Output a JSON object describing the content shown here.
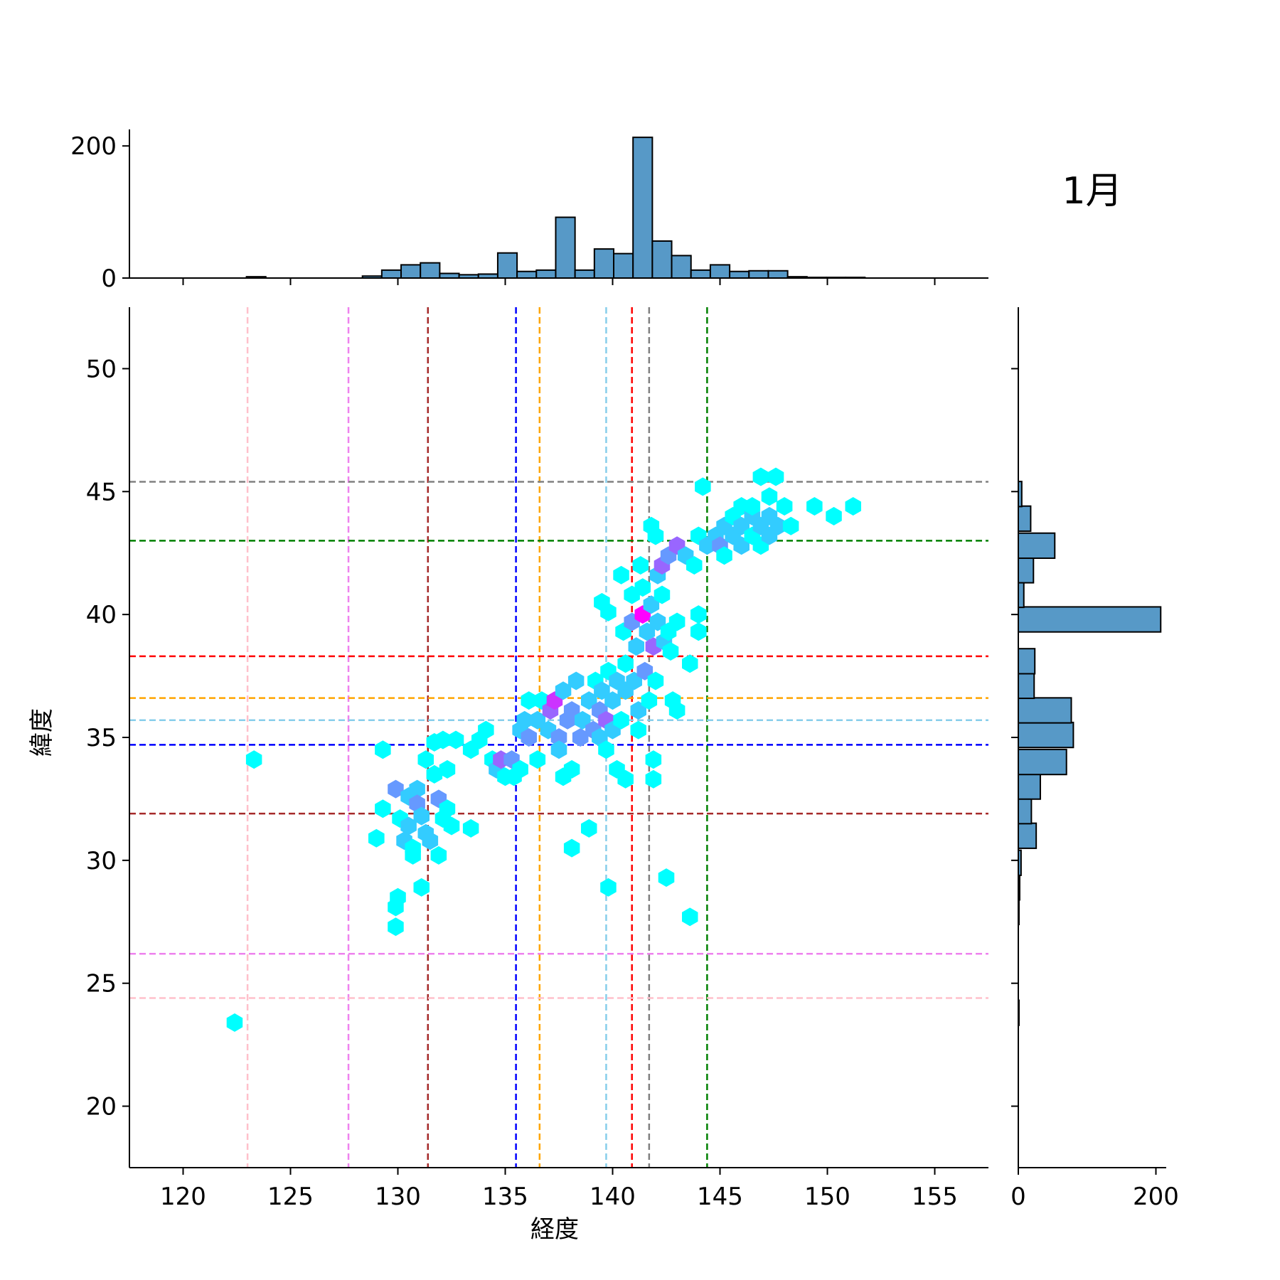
{
  "chart_data": {
    "type": "hexbin-joint",
    "title": "1月",
    "xlabel": "経度",
    "ylabel": "緯度",
    "xlim": [
      117.5,
      157.5
    ],
    "ylim": [
      17.5,
      52.5
    ],
    "xticks": [
      120,
      125,
      130,
      135,
      140,
      145,
      150,
      155
    ],
    "yticks": [
      20,
      25,
      30,
      35,
      40,
      45,
      50
    ],
    "colors": {
      "hist_fill": "#5799c7",
      "hist_edge": "#000000",
      "hex_low": "#00ffff",
      "hex_high": "#ff00ff"
    },
    "vertical_lines": [
      {
        "x": 123.0,
        "color": "#ffc0cb"
      },
      {
        "x": 127.7,
        "color": "#ee82ee"
      },
      {
        "x": 131.4,
        "color": "#a52a2a"
      },
      {
        "x": 135.5,
        "color": "#0000ff"
      },
      {
        "x": 136.6,
        "color": "#ffa500"
      },
      {
        "x": 139.7,
        "color": "#87ceeb"
      },
      {
        "x": 140.9,
        "color": "#ff0000"
      },
      {
        "x": 141.7,
        "color": "#808080"
      },
      {
        "x": 144.4,
        "color": "#008000"
      }
    ],
    "horizontal_lines": [
      {
        "y": 45.4,
        "color": "#808080"
      },
      {
        "y": 43.0,
        "color": "#008000"
      },
      {
        "y": 38.3,
        "color": "#ff0000"
      },
      {
        "y": 36.6,
        "color": "#ffa500"
      },
      {
        "y": 35.7,
        "color": "#87ceeb"
      },
      {
        "y": 34.7,
        "color": "#0000ff"
      },
      {
        "y": 31.9,
        "color": "#a52a2a"
      },
      {
        "y": 26.2,
        "color": "#ee82ee"
      },
      {
        "y": 24.4,
        "color": "#ffc0cb"
      }
    ],
    "hexbins": [
      [
        122.4,
        23.4,
        1
      ],
      [
        123.3,
        34.1,
        1
      ],
      [
        129.3,
        34.5,
        1
      ],
      [
        129.3,
        32.1,
        1
      ],
      [
        129.0,
        30.9,
        1
      ],
      [
        129.9,
        32.9,
        3
      ],
      [
        130.1,
        31.7,
        1
      ],
      [
        130.5,
        31.4,
        2
      ],
      [
        130.3,
        30.8,
        2
      ],
      [
        130.7,
        30.5,
        1
      ],
      [
        130.7,
        30.2,
        1
      ],
      [
        130.5,
        32.6,
        2
      ],
      [
        130.9,
        32.9,
        2
      ],
      [
        130.9,
        32.3,
        3
      ],
      [
        131.1,
        31.8,
        2
      ],
      [
        131.3,
        31.1,
        2
      ],
      [
        131.3,
        34.1,
        1
      ],
      [
        131.7,
        33.5,
        1
      ],
      [
        131.7,
        34.8,
        1
      ],
      [
        131.5,
        30.8,
        2
      ],
      [
        131.9,
        32.5,
        3
      ],
      [
        132.3,
        32.1,
        1
      ],
      [
        132.1,
        31.7,
        1
      ],
      [
        132.1,
        34.9,
        1
      ],
      [
        132.3,
        33.7,
        1
      ],
      [
        132.5,
        31.4,
        1
      ],
      [
        132.7,
        34.9,
        1
      ],
      [
        131.9,
        30.2,
        1
      ],
      [
        131.1,
        28.9,
        1
      ],
      [
        130.0,
        28.5,
        1
      ],
      [
        129.9,
        28.1,
        1
      ],
      [
        129.9,
        27.3,
        1
      ],
      [
        133.4,
        31.3,
        1
      ],
      [
        133.4,
        34.5,
        1
      ],
      [
        133.8,
        34.9,
        1
      ],
      [
        134.1,
        35.3,
        1
      ],
      [
        134.4,
        34.1,
        1
      ],
      [
        134.6,
        33.7,
        2
      ],
      [
        134.8,
        34.1,
        4
      ],
      [
        135.0,
        33.4,
        1
      ],
      [
        135.3,
        34.1,
        3
      ],
      [
        135.4,
        33.4,
        1
      ],
      [
        135.7,
        33.7,
        1
      ],
      [
        135.7,
        35.3,
        2
      ],
      [
        135.9,
        35.7,
        2
      ],
      [
        136.1,
        35.0,
        3
      ],
      [
        136.1,
        36.5,
        1
      ],
      [
        136.5,
        35.7,
        2
      ],
      [
        136.5,
        34.1,
        1
      ],
      [
        136.7,
        36.5,
        1
      ],
      [
        137.0,
        35.3,
        2
      ],
      [
        137.1,
        36.1,
        4
      ],
      [
        137.3,
        36.5,
        5
      ],
      [
        137.5,
        35.0,
        3
      ],
      [
        137.5,
        34.5,
        2
      ],
      [
        137.7,
        33.4,
        1
      ],
      [
        137.7,
        36.9,
        2
      ],
      [
        137.9,
        35.7,
        3
      ],
      [
        138.1,
        36.1,
        3
      ],
      [
        138.3,
        37.3,
        2
      ],
      [
        138.1,
        33.7,
        1
      ],
      [
        138.5,
        35.0,
        3
      ],
      [
        138.6,
        35.7,
        2
      ],
      [
        138.9,
        36.5,
        2
      ],
      [
        138.9,
        31.3,
        1
      ],
      [
        138.1,
        30.5,
        1
      ],
      [
        139.1,
        35.3,
        3
      ],
      [
        139.2,
        37.3,
        1
      ],
      [
        139.4,
        36.1,
        3
      ],
      [
        139.4,
        35.0,
        2
      ],
      [
        139.5,
        36.9,
        2
      ],
      [
        139.7,
        35.7,
        4
      ],
      [
        139.7,
        34.5,
        1
      ],
      [
        139.8,
        37.7,
        1
      ],
      [
        140.0,
        35.3,
        2
      ],
      [
        140.0,
        36.5,
        2
      ],
      [
        140.2,
        37.3,
        2
      ],
      [
        139.8,
        28.9,
        1
      ],
      [
        139.8,
        40.1,
        1
      ],
      [
        139.5,
        40.5,
        1
      ],
      [
        140.2,
        33.7,
        1
      ],
      [
        140.4,
        35.7,
        1
      ],
      [
        140.6,
        36.9,
        2
      ],
      [
        140.6,
        33.3,
        1
      ],
      [
        140.4,
        41.6,
        1
      ],
      [
        140.5,
        39.3,
        1
      ],
      [
        140.6,
        38.0,
        1
      ],
      [
        140.9,
        40.8,
        1
      ],
      [
        140.9,
        39.7,
        3
      ],
      [
        141.0,
        37.3,
        2
      ],
      [
        141.1,
        38.7,
        2
      ],
      [
        141.3,
        42.0,
        1
      ],
      [
        141.2,
        35.3,
        1
      ],
      [
        141.2,
        36.1,
        2
      ],
      [
        141.4,
        40.0,
        6
      ],
      [
        141.6,
        39.3,
        2
      ],
      [
        141.5,
        37.7,
        3
      ],
      [
        141.4,
        41.1,
        1
      ],
      [
        141.7,
        36.5,
        1
      ],
      [
        141.8,
        43.6,
        1
      ],
      [
        141.8,
        40.4,
        2
      ],
      [
        141.9,
        38.7,
        4
      ],
      [
        141.9,
        34.1,
        1
      ],
      [
        141.9,
        33.3,
        1
      ],
      [
        142.0,
        37.3,
        1
      ],
      [
        142.0,
        43.2,
        1
      ],
      [
        142.1,
        41.6,
        2
      ],
      [
        142.1,
        39.7,
        2
      ],
      [
        142.3,
        42.0,
        4
      ],
      [
        142.3,
        40.8,
        1
      ],
      [
        142.4,
        38.9,
        2
      ],
      [
        142.5,
        29.3,
        1
      ],
      [
        142.6,
        42.4,
        3
      ],
      [
        142.6,
        39.3,
        1
      ],
      [
        142.7,
        38.5,
        1
      ],
      [
        142.8,
        36.5,
        1
      ],
      [
        143.0,
        42.8,
        4
      ],
      [
        143.0,
        39.7,
        1
      ],
      [
        143.0,
        36.1,
        1
      ],
      [
        143.4,
        42.4,
        2
      ],
      [
        143.6,
        38.0,
        1
      ],
      [
        143.6,
        27.7,
        1
      ],
      [
        143.8,
        42.0,
        1
      ],
      [
        144.0,
        43.2,
        1
      ],
      [
        144.0,
        40.0,
        1
      ],
      [
        144.0,
        39.3,
        1
      ],
      [
        144.2,
        45.2,
        1
      ],
      [
        144.4,
        42.8,
        2
      ],
      [
        144.8,
        43.2,
        2
      ],
      [
        145.0,
        42.8,
        3
      ],
      [
        145.2,
        42.4,
        1
      ],
      [
        145.2,
        43.6,
        2
      ],
      [
        145.6,
        43.2,
        2
      ],
      [
        145.6,
        44.0,
        1
      ],
      [
        146.0,
        42.8,
        2
      ],
      [
        146.0,
        43.6,
        2
      ],
      [
        146.0,
        44.4,
        1
      ],
      [
        146.5,
        43.2,
        1
      ],
      [
        146.5,
        44.0,
        2
      ],
      [
        146.5,
        44.4,
        1
      ],
      [
        146.9,
        42.8,
        1
      ],
      [
        146.9,
        43.6,
        2
      ],
      [
        146.9,
        45.6,
        1
      ],
      [
        147.3,
        43.2,
        2
      ],
      [
        147.3,
        44.0,
        2
      ],
      [
        147.3,
        44.8,
        1
      ],
      [
        147.6,
        45.6,
        1
      ],
      [
        147.7,
        43.6,
        2
      ],
      [
        148.0,
        44.4,
        1
      ],
      [
        148.3,
        43.6,
        1
      ],
      [
        149.4,
        44.4,
        1
      ],
      [
        150.3,
        44.0,
        1
      ],
      [
        151.2,
        44.4,
        1
      ]
    ],
    "x_hist": {
      "bin_width": 0.9,
      "bins": [
        {
          "x": 123.4,
          "count": 2
        },
        {
          "x": 128.8,
          "count": 3
        },
        {
          "x": 129.7,
          "count": 12
        },
        {
          "x": 130.6,
          "count": 20
        },
        {
          "x": 131.5,
          "count": 23
        },
        {
          "x": 132.4,
          "count": 7
        },
        {
          "x": 133.3,
          "count": 5
        },
        {
          "x": 134.2,
          "count": 6
        },
        {
          "x": 135.1,
          "count": 38
        },
        {
          "x": 136.0,
          "count": 10
        },
        {
          "x": 136.9,
          "count": 12
        },
        {
          "x": 137.8,
          "count": 92
        },
        {
          "x": 138.7,
          "count": 12
        },
        {
          "x": 139.6,
          "count": 44
        },
        {
          "x": 140.5,
          "count": 37
        },
        {
          "x": 141.4,
          "count": 213
        },
        {
          "x": 142.3,
          "count": 56
        },
        {
          "x": 143.2,
          "count": 34
        },
        {
          "x": 144.1,
          "count": 12
        },
        {
          "x": 145.0,
          "count": 20
        },
        {
          "x": 145.9,
          "count": 10
        },
        {
          "x": 146.8,
          "count": 11
        },
        {
          "x": 147.7,
          "count": 11
        },
        {
          "x": 148.6,
          "count": 2
        },
        {
          "x": 149.5,
          "count": 1
        },
        {
          "x": 150.4,
          "count": 1
        },
        {
          "x": 151.3,
          "count": 1
        }
      ],
      "ylim": [
        0,
        225
      ],
      "yticks": [
        0,
        200
      ]
    },
    "y_hist": {
      "bin_width": 1.02,
      "bins": [
        {
          "y": 23.8,
          "count": 1
        },
        {
          "y": 27.9,
          "count": 1
        },
        {
          "y": 28.9,
          "count": 2
        },
        {
          "y": 29.9,
          "count": 4
        },
        {
          "y": 31.0,
          "count": 26
        },
        {
          "y": 32.0,
          "count": 19
        },
        {
          "y": 33.0,
          "count": 32
        },
        {
          "y": 34.0,
          "count": 70
        },
        {
          "y": 35.1,
          "count": 80
        },
        {
          "y": 36.1,
          "count": 77
        },
        {
          "y": 37.1,
          "count": 23
        },
        {
          "y": 38.1,
          "count": 24
        },
        {
          "y": 39.8,
          "count": 207
        },
        {
          "y": 40.8,
          "count": 8
        },
        {
          "y": 41.8,
          "count": 22
        },
        {
          "y": 42.8,
          "count": 53
        },
        {
          "y": 43.9,
          "count": 18
        },
        {
          "y": 44.9,
          "count": 5
        }
      ],
      "xlim": [
        0,
        215
      ],
      "xticks": [
        0,
        200
      ]
    }
  }
}
